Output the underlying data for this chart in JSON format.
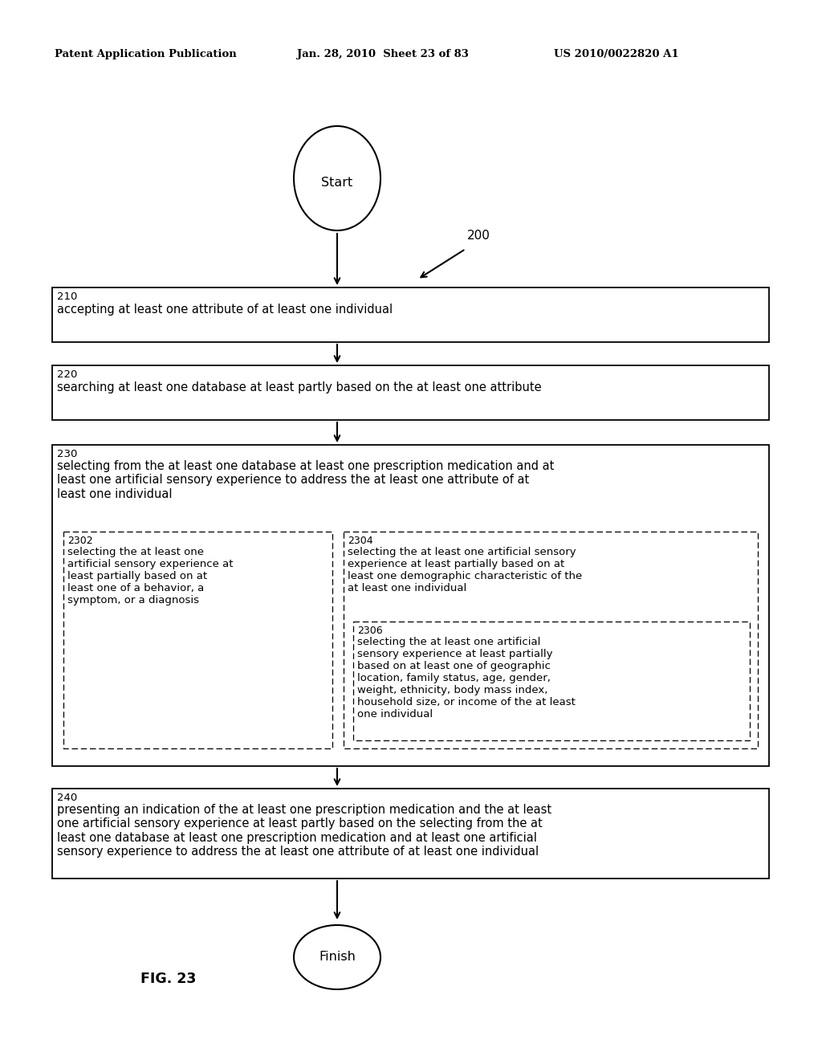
{
  "bg_color": "#ffffff",
  "header_left": "Patent Application Publication",
  "header_mid": "Jan. 28, 2010  Sheet 23 of 83",
  "header_right": "US 2010/0022820 A1",
  "fig_label": "FIG. 23",
  "diagram_label": "200",
  "start_label": "Start",
  "finish_label": "Finish",
  "box210_num": "210",
  "box210_text": "accepting at least one attribute of at least one individual",
  "box220_num": "220",
  "box220_text": "searching at least one database at least partly based on the at least one attribute",
  "box230_num": "230",
  "box230_text": "selecting from the at least one database at least one prescription medication and at\nleast one artificial sensory experience to address the at least one attribute of at\nleast one individual",
  "box2302_num": "2302",
  "box2302_text": "selecting the at least one\nartificial sensory experience at\nleast partially based on at\nleast one of a behavior, a\nsymptom, or a diagnosis",
  "box2304_num": "2304",
  "box2304_text": "selecting the at least one artificial sensory\nexperience at least partially based on at\nleast one demographic characteristic of the\nat least one individual",
  "box2306_num": "2306",
  "box2306_text": "selecting the at least one artificial\nsensory experience at least partially\nbased on at least one of geographic\nlocation, family status, age, gender,\nweight, ethnicity, body mass index,\nhousehold size, or income of the at least\none individual",
  "box240_num": "240",
  "box240_text": "presenting an indication of the at least one prescription medication and the at least\none artificial sensory experience at least partly based on the selecting from the at\nleast one database at least one prescription medication and at least one artificial\nsensory experience to address the at least one attribute of at least one individual"
}
